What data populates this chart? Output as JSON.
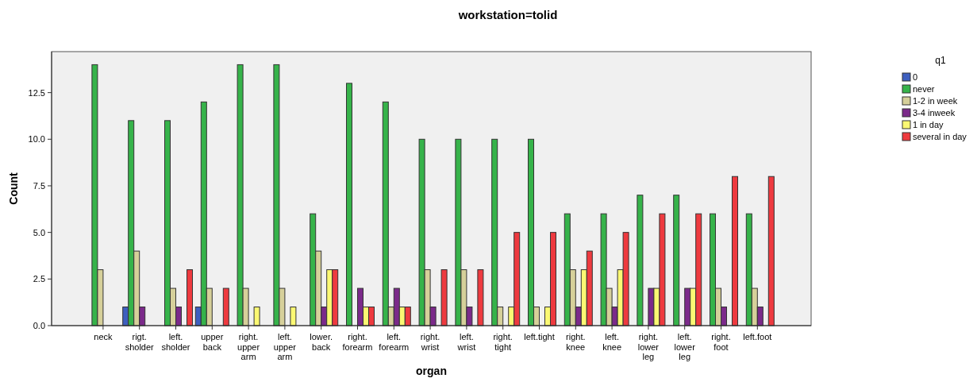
{
  "chart_data": {
    "type": "bar",
    "title": "workstation=tolid",
    "xlabel": "organ",
    "ylabel": "Count",
    "legend_title": "q1",
    "legend": "top right",
    "grid": false,
    "categories": [
      "neck",
      "rigt. sholder",
      "left. sholder",
      "upper back",
      "right. upper arm",
      "left. upper arm",
      "lower. back",
      "right. forearm",
      "left. forearm",
      "right. wrist",
      "left. wrist",
      "right. tight",
      "left.tight",
      "right. knee",
      "left. knee",
      "right. lower leg",
      "left. lower leg",
      "right. foot",
      "left.foot"
    ],
    "ylim": [
      0,
      14.7
    ],
    "yticks": [
      {
        "value": 0,
        "label": "0.0"
      },
      {
        "value": 2.5,
        "label": "2.5"
      },
      {
        "value": 5,
        "label": "5.0"
      },
      {
        "value": 7.5,
        "label": "7.5"
      },
      {
        "value": 10,
        "label": "10.0"
      },
      {
        "value": 12.5,
        "label": "12.5"
      }
    ],
    "series": [
      {
        "name": "0",
        "color": "#3e5fbf",
        "values": [
          null,
          1,
          null,
          1,
          null,
          null,
          null,
          null,
          null,
          null,
          null,
          null,
          null,
          null,
          null,
          null,
          null,
          null,
          null
        ]
      },
      {
        "name": "never",
        "color": "#36b34a",
        "values": [
          14,
          11,
          11,
          12,
          14,
          14,
          6,
          13,
          12,
          10,
          10,
          10,
          10,
          6,
          6,
          7,
          7,
          6,
          6
        ]
      },
      {
        "name": "1-2 in week",
        "color": "#d6d09a",
        "values": [
          3,
          4,
          2,
          2,
          2,
          2,
          4,
          null,
          1,
          3,
          3,
          1,
          1,
          3,
          2,
          null,
          null,
          2,
          2
        ]
      },
      {
        "name": "3-4 inweek",
        "color": "#7b2a8a",
        "values": [
          null,
          1,
          1,
          null,
          null,
          null,
          1,
          2,
          2,
          1,
          1,
          null,
          null,
          1,
          1,
          2,
          2,
          1,
          1
        ]
      },
      {
        "name": "1 in day",
        "color": "#fbf873",
        "values": [
          null,
          null,
          null,
          null,
          1,
          1,
          3,
          1,
          1,
          null,
          null,
          1,
          1,
          3,
          3,
          2,
          2,
          null,
          null
        ]
      },
      {
        "name": "several in day",
        "color": "#ee3a3f",
        "values": [
          null,
          null,
          3,
          2,
          null,
          null,
          3,
          1,
          1,
          3,
          3,
          5,
          5,
          4,
          5,
          6,
          6,
          8,
          8
        ]
      }
    ]
  }
}
